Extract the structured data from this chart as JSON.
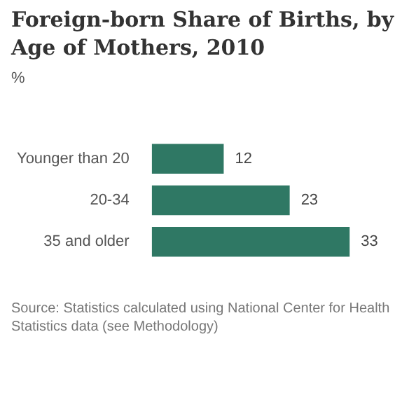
{
  "chart_data": {
    "type": "bar",
    "orientation": "horizontal",
    "title": "Foreign-born Share of Births, by Age of Mothers, 2010",
    "subtitle": "%",
    "categories": [
      "Younger than 20",
      "20-34",
      "35 and older"
    ],
    "values": [
      12,
      23,
      33
    ],
    "color": "#2f7864",
    "data_labels": true,
    "annotations": [
      "Source: Statistics calculated using National Center for Health Statistics data (see Methodology)"
    ]
  }
}
